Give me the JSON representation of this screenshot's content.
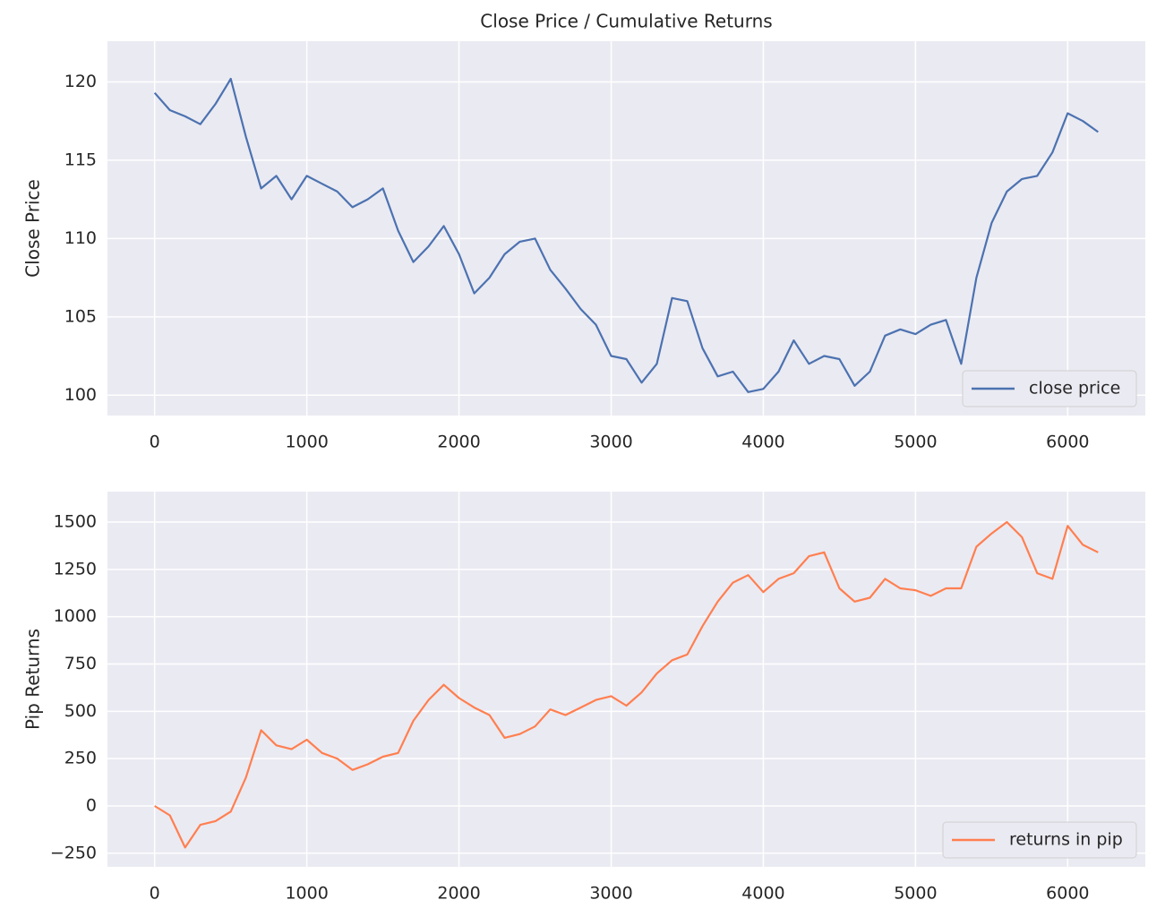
{
  "chart_data": [
    {
      "type": "line",
      "title": "Close Price / Cumulative Returns",
      "y_label": "Close Price",
      "x": [
        0,
        100,
        200,
        300,
        400,
        500,
        600,
        700,
        800,
        900,
        1000,
        1100,
        1200,
        1300,
        1400,
        1500,
        1600,
        1700,
        1800,
        1900,
        2000,
        2100,
        2200,
        2300,
        2400,
        2500,
        2600,
        2700,
        2800,
        2900,
        3000,
        3100,
        3200,
        3300,
        3400,
        3500,
        3600,
        3700,
        3800,
        3900,
        4000,
        4100,
        4200,
        4300,
        4400,
        4500,
        4600,
        4700,
        4800,
        4900,
        5000,
        5100,
        5200,
        5300,
        5400,
        5500,
        5600,
        5700,
        5800,
        5900,
        6000,
        6100,
        6200
      ],
      "series": [
        {
          "name": "close price",
          "color": "#4c72b0",
          "values": [
            119.3,
            118.2,
            117.8,
            117.3,
            118.6,
            120.2,
            116.5,
            113.2,
            114.0,
            112.5,
            114.0,
            113.5,
            113.0,
            112.0,
            112.5,
            113.2,
            110.5,
            108.5,
            109.5,
            110.8,
            109.0,
            106.5,
            107.5,
            109.0,
            109.8,
            110.0,
            108.0,
            106.8,
            105.5,
            104.5,
            102.5,
            102.3,
            100.8,
            102.0,
            106.2,
            106.0,
            103.0,
            101.2,
            101.5,
            100.2,
            100.4,
            101.5,
            103.5,
            102.0,
            102.5,
            102.3,
            100.6,
            101.5,
            103.8,
            104.2,
            103.9,
            104.5,
            104.8,
            102.0,
            107.5,
            111.0,
            113.0,
            113.8,
            114.0,
            115.5,
            118.0,
            117.5,
            116.8
          ]
        }
      ],
      "xlim": [
        -310,
        6510
      ],
      "xticks": [
        0,
        1000,
        2000,
        3000,
        4000,
        5000,
        6000
      ],
      "ylim": [
        98.7,
        122.6
      ],
      "yticks": [
        100,
        105,
        110,
        115,
        120
      ],
      "grid": true,
      "legend": "lower right"
    },
    {
      "type": "line",
      "y_label": "Pip Returns",
      "x": [
        0,
        100,
        200,
        300,
        400,
        500,
        600,
        700,
        800,
        900,
        1000,
        1100,
        1200,
        1300,
        1400,
        1500,
        1600,
        1700,
        1800,
        1900,
        2000,
        2100,
        2200,
        2300,
        2400,
        2500,
        2600,
        2700,
        2800,
        2900,
        3000,
        3100,
        3200,
        3300,
        3400,
        3500,
        3600,
        3700,
        3800,
        3900,
        4000,
        4100,
        4200,
        4300,
        4400,
        4500,
        4600,
        4700,
        4800,
        4900,
        5000,
        5100,
        5200,
        5300,
        5400,
        5500,
        5600,
        5700,
        5800,
        5900,
        6000,
        6100,
        6200
      ],
      "series": [
        {
          "name": "returns in pip",
          "color": "#ff7f50",
          "values": [
            0,
            -50,
            -220,
            -100,
            -80,
            -30,
            150,
            400,
            320,
            300,
            350,
            280,
            250,
            190,
            220,
            260,
            280,
            450,
            560,
            640,
            570,
            520,
            480,
            360,
            380,
            420,
            510,
            480,
            520,
            560,
            580,
            530,
            600,
            700,
            770,
            800,
            950,
            1080,
            1180,
            1220,
            1130,
            1200,
            1230,
            1320,
            1340,
            1150,
            1080,
            1100,
            1200,
            1150,
            1140,
            1110,
            1150,
            1150,
            1370,
            1440,
            1500,
            1420,
            1230,
            1200,
            1480,
            1380,
            1340
          ]
        }
      ],
      "xlim": [
        -310,
        6510
      ],
      "xticks": [
        0,
        1000,
        2000,
        3000,
        4000,
        5000,
        6000
      ],
      "ylim": [
        -322,
        1661
      ],
      "yticks": [
        {
          "value": -250,
          "label": "−250"
        },
        0,
        250,
        500,
        750,
        1000,
        1250,
        1500
      ],
      "grid": true,
      "legend": "lower right"
    }
  ]
}
